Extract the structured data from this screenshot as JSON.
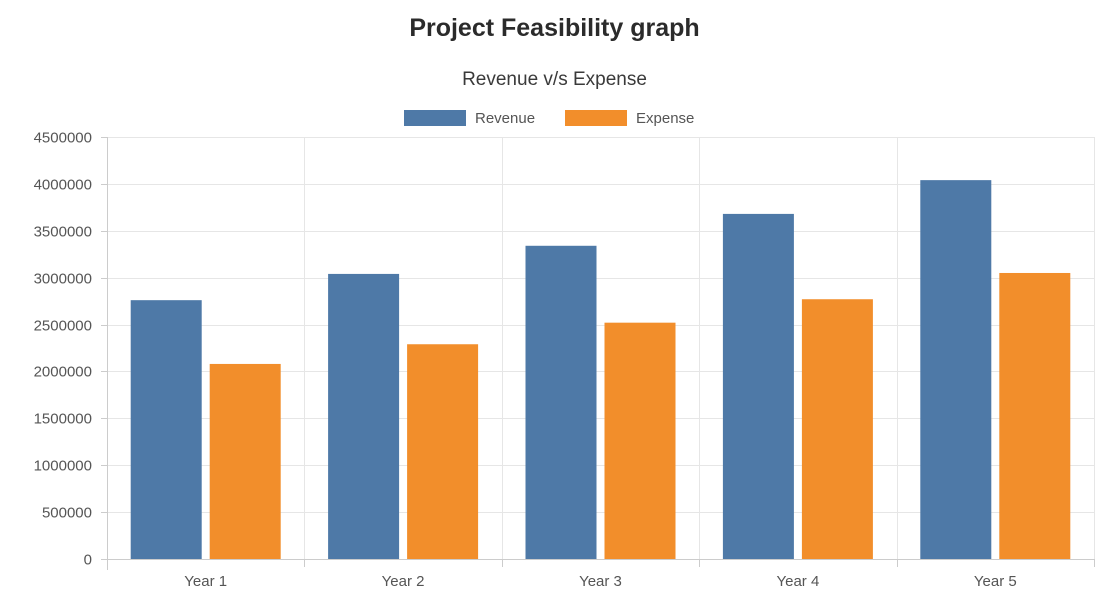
{
  "page": {
    "title": "Project Feasibility graph"
  },
  "chart_data": {
    "type": "bar",
    "title": "Revenue v/s Expense",
    "xlabel": "",
    "ylabel": "",
    "categories": [
      "Year 1",
      "Year 2",
      "Year 3",
      "Year 4",
      "Year 5"
    ],
    "series": [
      {
        "name": "Revenue",
        "color": "#4e79a7",
        "values": [
          2760000,
          3040000,
          3340000,
          3680000,
          4040000
        ]
      },
      {
        "name": "Expense",
        "color": "#f28e2b",
        "values": [
          2080000,
          2290000,
          2520000,
          2770000,
          3050000
        ]
      }
    ],
    "ylim": [
      0,
      4500000
    ],
    "yticks": [
      "0",
      "500000",
      "1000000",
      "1500000",
      "2000000",
      "2500000",
      "3000000",
      "3500000",
      "4000000",
      "4500000"
    ],
    "grid": true,
    "legend_position": "top-center"
  }
}
